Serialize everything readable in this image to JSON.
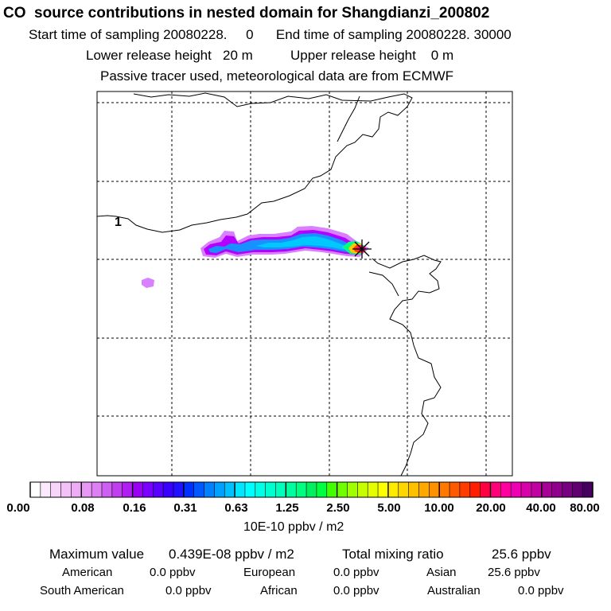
{
  "title": "CO  source contributions in nested domain for Shangdianzi_200802",
  "header": {
    "start_label": "Start time of sampling",
    "start_value": "20080228.     0",
    "end_label": "End time of sampling",
    "end_value": "20080228. 30000",
    "lower_label": "Lower release height",
    "lower_value": "20 m",
    "upper_label": "Upper release height",
    "upper_value": "0 m",
    "note": "Passive tracer used, meteorological data are from ECMWF"
  },
  "map": {
    "grid_line_style": "dashed",
    "contour_label": "1",
    "station_marker": "star-cross",
    "plume_colors": [
      "#d880ff",
      "#b400ff",
      "#7f00ff",
      "#1890ff",
      "#00c8ff",
      "#00ffe0",
      "#00ff80",
      "#ffc800",
      "#ff3c00",
      "#ff0090"
    ]
  },
  "colorbar": {
    "tick_labels": [
      "0.00",
      "0.08",
      "0.16",
      "0.31",
      "0.63",
      "1.25",
      "2.50",
      "5.00",
      "10.00",
      "20.00",
      "40.00",
      "80.00"
    ],
    "segment_colors": [
      [
        "#ffffff",
        "#fbeafd",
        "#f7d5fb",
        "#f3c0f8",
        "#eeabf6"
      ],
      [
        "#e897f4",
        "#dc80f3",
        "#cd60f1",
        "#bf3ff0",
        "#b01ef2"
      ],
      [
        "#9a00f4",
        "#7a00ff",
        "#5a00ff",
        "#3a00ff",
        "#2010ff"
      ],
      [
        "#0030ff",
        "#0058ff",
        "#0080ff",
        "#00a0ff",
        "#00c0ff"
      ],
      [
        "#00e6ff",
        "#00ffff",
        "#00ffe6",
        "#00ffd0",
        "#00ffbb"
      ],
      [
        "#00ffa0",
        "#00ff80",
        "#00f060",
        "#00ff40",
        "#40ff00"
      ],
      [
        "#70ff00",
        "#a0ff00",
        "#c8ff00",
        "#e6ff00",
        "#ffff00"
      ],
      [
        "#ffeb00",
        "#ffd700",
        "#ffc000",
        "#ffa800",
        "#ff9000"
      ],
      [
        "#ff7800",
        "#ff5a00",
        "#ff3c00",
        "#ff1e00",
        "#ff0040"
      ],
      [
        "#ff0078",
        "#ff00a0",
        "#f000b4",
        "#d800aa",
        "#c000a0"
      ],
      [
        "#a80096",
        "#90008c",
        "#780080",
        "#600070",
        "#480060"
      ]
    ],
    "unit": "10E-10 ppbv / m2"
  },
  "footer": {
    "max_label": "Maximum value",
    "max_value": "0.439E-08 ppbv / m2",
    "total_label": "Total mixing ratio",
    "total_value": "25.6 ppbv",
    "regions": [
      {
        "name": "American",
        "value": "0.0 ppbv"
      },
      {
        "name": "European",
        "value": "0.0 ppbv"
      },
      {
        "name": "Asian",
        "value": "25.6 ppbv"
      },
      {
        "name": "South American",
        "value": "0.0 ppbv"
      },
      {
        "name": "African",
        "value": "0.0 ppbv"
      },
      {
        "name": "Australian",
        "value": "0.0 ppbv"
      }
    ]
  }
}
